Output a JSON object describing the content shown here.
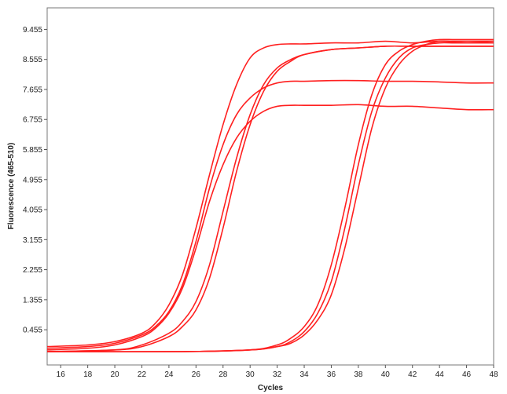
{
  "chart_data": {
    "type": "line",
    "xlabel": "Cycles",
    "ylabel": "Fluorescence (465-510)",
    "xlim": [
      15,
      48
    ],
    "ylim": [
      -0.6,
      10.1
    ],
    "x_ticks": [
      16,
      18,
      20,
      22,
      24,
      26,
      28,
      30,
      32,
      34,
      36,
      38,
      40,
      42,
      44,
      46,
      48
    ],
    "y_ticks": [
      0.455,
      1.355,
      2.255,
      3.155,
      4.055,
      4.955,
      5.855,
      6.755,
      7.655,
      8.555,
      9.455
    ],
    "y_tick_labels": [
      "0.455",
      "1.355",
      "2.255",
      "3.155",
      "4.055",
      "4.955",
      "5.855",
      "6.755",
      "7.655",
      "8.555",
      "9.455"
    ],
    "grid": false,
    "line_color": "#ff2020",
    "series": [
      {
        "x": [
          15,
          18,
          20,
          22,
          23,
          24,
          25,
          26,
          27,
          28,
          29,
          30,
          31,
          32,
          33,
          34,
          36,
          38,
          40,
          42,
          44,
          46,
          48
        ],
        "values": [
          -0.05,
          0.0,
          0.1,
          0.35,
          0.65,
          1.2,
          2.1,
          3.5,
          5.1,
          6.6,
          7.8,
          8.6,
          8.9,
          9.0,
          9.02,
          9.02,
          9.05,
          9.05,
          9.1,
          9.05,
          9.1,
          9.05,
          9.1
        ]
      },
      {
        "x": [
          15,
          18,
          20,
          22,
          23,
          24,
          25,
          26,
          27,
          28,
          29,
          30,
          31,
          32,
          33,
          34,
          36,
          38,
          40,
          42,
          44,
          46,
          48
        ],
        "values": [
          -0.1,
          -0.05,
          0.05,
          0.3,
          0.55,
          1.0,
          1.8,
          3.1,
          4.7,
          6.0,
          6.9,
          7.4,
          7.7,
          7.85,
          7.9,
          7.9,
          7.92,
          7.92,
          7.9,
          7.9,
          7.88,
          7.85,
          7.85
        ]
      },
      {
        "x": [
          15,
          18,
          20,
          22,
          23,
          24,
          25,
          26,
          27,
          28,
          29,
          30,
          31,
          32,
          33,
          34,
          36,
          38,
          40,
          42,
          44,
          46,
          48
        ],
        "values": [
          -0.15,
          -0.1,
          0.0,
          0.25,
          0.5,
          0.95,
          1.7,
          2.9,
          4.3,
          5.4,
          6.2,
          6.7,
          7.0,
          7.15,
          7.18,
          7.18,
          7.18,
          7.2,
          7.15,
          7.15,
          7.1,
          7.05,
          7.05
        ]
      },
      {
        "x": [
          15,
          20,
          22,
          24,
          25,
          26,
          27,
          28,
          29,
          30,
          31,
          32,
          33,
          34,
          36,
          38,
          40,
          42,
          44,
          46,
          48
        ],
        "values": [
          -0.2,
          -0.15,
          0.0,
          0.35,
          0.7,
          1.3,
          2.4,
          4.0,
          5.6,
          6.9,
          7.8,
          8.3,
          8.55,
          8.7,
          8.85,
          8.9,
          8.95,
          8.95,
          8.95,
          8.95,
          8.95
        ]
      },
      {
        "x": [
          15,
          20,
          22,
          24,
          25,
          26,
          27,
          28,
          29,
          30,
          31,
          32,
          33,
          34,
          36,
          38,
          40,
          42,
          44,
          46,
          48
        ],
        "values": [
          -0.2,
          -0.15,
          -0.05,
          0.25,
          0.55,
          1.05,
          2.0,
          3.5,
          5.2,
          6.6,
          7.6,
          8.2,
          8.5,
          8.7,
          8.85,
          8.9,
          8.95,
          8.95,
          8.95,
          8.95,
          8.95
        ]
      },
      {
        "x": [
          15,
          25,
          30,
          32,
          33,
          34,
          35,
          36,
          37,
          38,
          39,
          40,
          41,
          42,
          43,
          44,
          45,
          46,
          48
        ],
        "values": [
          -0.2,
          -0.2,
          -0.15,
          0.0,
          0.2,
          0.55,
          1.2,
          2.4,
          4.1,
          6.0,
          7.5,
          8.4,
          8.8,
          9.0,
          9.1,
          9.15,
          9.15,
          9.15,
          9.15
        ]
      },
      {
        "x": [
          15,
          25,
          30,
          32,
          33,
          34,
          35,
          36,
          37,
          38,
          39,
          40,
          41,
          42,
          43,
          44,
          45,
          46,
          48
        ],
        "values": [
          -0.2,
          -0.2,
          -0.15,
          -0.05,
          0.1,
          0.4,
          0.95,
          1.9,
          3.5,
          5.4,
          7.0,
          8.0,
          8.6,
          8.9,
          9.0,
          9.05,
          9.05,
          9.05,
          9.05
        ]
      },
      {
        "x": [
          15,
          25,
          30,
          32,
          33,
          34,
          35,
          36,
          37,
          38,
          39,
          40,
          41,
          42,
          43,
          44,
          45,
          46,
          48
        ],
        "values": [
          -0.2,
          -0.2,
          -0.15,
          -0.05,
          0.05,
          0.3,
          0.75,
          1.5,
          2.9,
          4.7,
          6.5,
          7.7,
          8.4,
          8.8,
          9.0,
          9.1,
          9.1,
          9.1,
          9.1
        ]
      }
    ]
  }
}
